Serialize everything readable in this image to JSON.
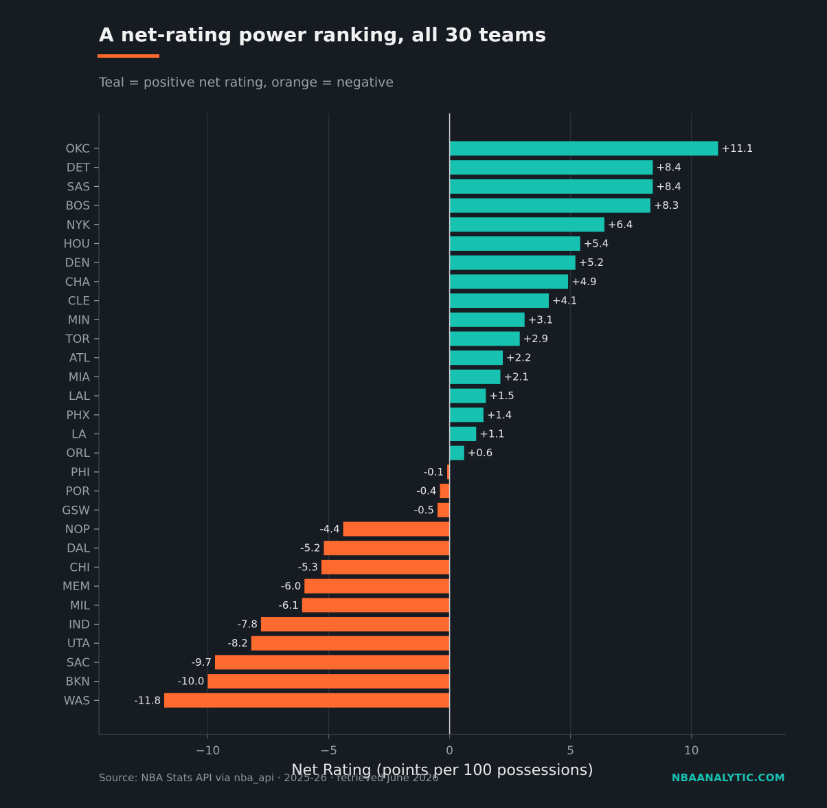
{
  "header": {
    "title": "A net-rating power ranking, all 30 teams",
    "subtitle": "Teal = positive net rating, orange = negative"
  },
  "footer": {
    "source": "Source: NBA Stats API via nba_api · 2025-26 · retrieved June 2026",
    "brand": "NBAANALYTIC.COM"
  },
  "colors": {
    "background": "#171b22",
    "positive": "#17c2b0",
    "negative": "#ff6a2e",
    "accent": "#ff6a2e",
    "brand": "#17c2b0"
  },
  "chart_data": {
    "type": "bar",
    "orientation": "horizontal",
    "xlabel": "Net Rating (points per 100 possessions)",
    "xlim": [
      -14.5,
      13.9
    ],
    "xticks": [
      -10,
      -5,
      0,
      5,
      10
    ],
    "xtick_labels": [
      "−10",
      "−5",
      "0",
      "5",
      "10"
    ],
    "grid": "vertical",
    "categories": [
      "OKC",
      "DET",
      "SAS",
      "BOS",
      "NYK",
      "HOU",
      "DEN",
      "CHA",
      "CLE",
      "MIN",
      "TOR",
      "ATL",
      "MIA",
      "LAL",
      "PHX",
      "LA ",
      "ORL",
      "PHI",
      "POR",
      "GSW",
      "NOP",
      "DAL",
      "CHI",
      "MEM",
      "MIL",
      "IND",
      "UTA",
      "SAC",
      "BKN",
      "WAS"
    ],
    "values": [
      11.1,
      8.4,
      8.4,
      8.3,
      6.4,
      5.4,
      5.2,
      4.9,
      4.1,
      3.1,
      2.9,
      2.2,
      2.1,
      1.5,
      1.4,
      1.1,
      0.6,
      -0.1,
      -0.4,
      -0.5,
      -4.4,
      -5.2,
      -5.3,
      -6.0,
      -6.1,
      -7.8,
      -8.2,
      -9.7,
      -10.0,
      -11.8
    ],
    "value_labels": [
      "+11.1",
      "+8.4",
      "+8.4",
      "+8.3",
      "+6.4",
      "+5.4",
      "+5.2",
      "+4.9",
      "+4.1",
      "+3.1",
      "+2.9",
      "+2.2",
      "+2.1",
      "+1.5",
      "+1.4",
      "+1.1",
      "+0.6",
      "-0.1",
      "-0.4",
      "-0.5",
      "-4.4",
      "-5.2",
      "-5.3",
      "-6.0",
      "-6.1",
      "-7.8",
      "-8.2",
      "-9.7",
      "-10.0",
      "-11.8"
    ]
  }
}
